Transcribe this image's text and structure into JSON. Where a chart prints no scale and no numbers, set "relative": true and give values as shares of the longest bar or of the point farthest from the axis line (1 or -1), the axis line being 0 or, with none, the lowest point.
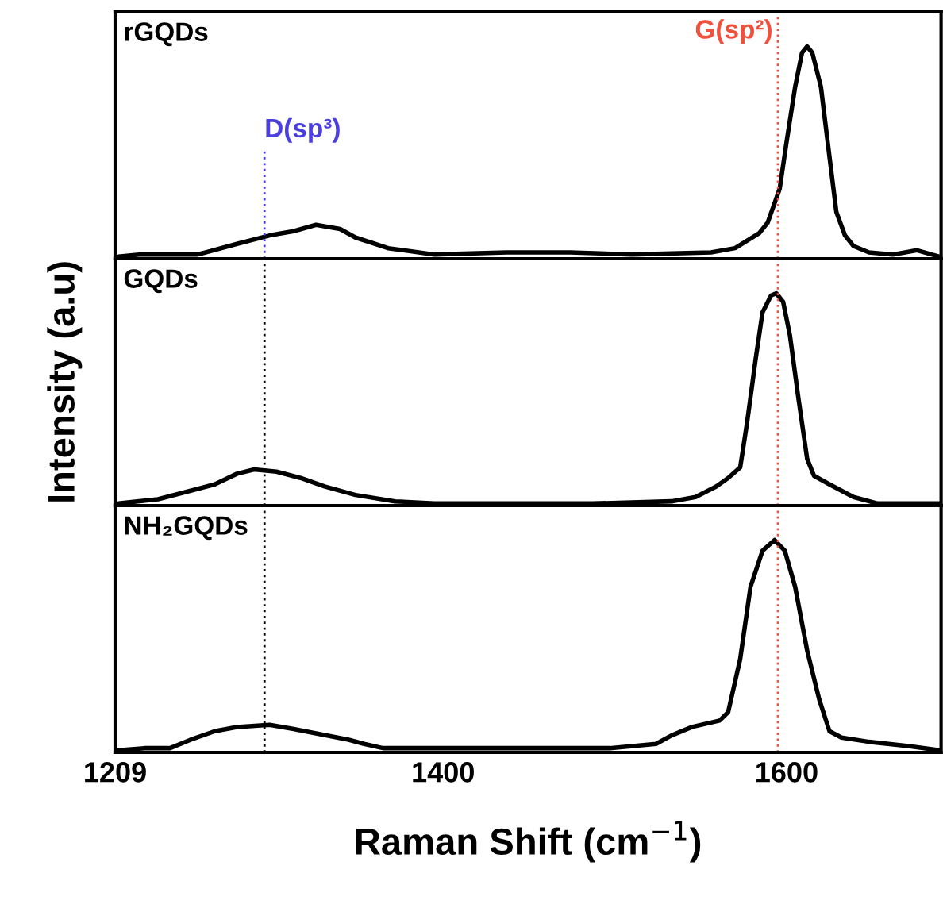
{
  "chart_data": [
    {
      "type": "line",
      "relative": true,
      "tick_labels": false,
      "xlim": [
        1209,
        1690
      ],
      "x": [
        1211,
        1223,
        1257,
        1280,
        1299,
        1313,
        1326,
        1340,
        1349,
        1368,
        1395,
        1437,
        1474,
        1510,
        1556,
        1570,
        1584,
        1589,
        1596,
        1600,
        1605,
        1609,
        1612,
        1615,
        1620,
        1625,
        1629,
        1634,
        1639,
        1648,
        1662,
        1676,
        1689
      ],
      "series": [
        {
          "name": "rGQDs",
          "color": "#000000",
          "values": [
            0.01,
            0.02,
            0.02,
            0.07,
            0.11,
            0.13,
            0.16,
            0.14,
            0.1,
            0.05,
            0.02,
            0.03,
            0.03,
            0.02,
            0.03,
            0.05,
            0.12,
            0.17,
            0.33,
            0.55,
            0.81,
            0.97,
            1.0,
            0.97,
            0.81,
            0.48,
            0.22,
            0.11,
            0.06,
            0.03,
            0.02,
            0.04,
            0.01
          ]
        }
      ],
      "ref_lines": [
        {
          "axis": "x",
          "value": 1296,
          "label": "D(sp³)",
          "color": "#4b3fe0",
          "line_style": "dotted"
        },
        {
          "axis": "x",
          "value": 1595,
          "label": "G(sp²)",
          "color": "#f0503c",
          "line_style": "dotted"
        }
      ]
    },
    {
      "type": "line",
      "relative": true,
      "tick_labels": false,
      "xlim": [
        1209,
        1690
      ],
      "ylabel": "Intensity (a.u)",
      "x": [
        1211,
        1234,
        1253,
        1267,
        1280,
        1290,
        1303,
        1317,
        1331,
        1349,
        1372,
        1395,
        1441,
        1487,
        1533,
        1547,
        1559,
        1566,
        1573,
        1577,
        1582,
        1586,
        1591,
        1594,
        1598,
        1602,
        1607,
        1612,
        1616,
        1625,
        1639,
        1653,
        1689
      ],
      "series": [
        {
          "name": "GQDs",
          "color": "#000000",
          "values": [
            0.01,
            0.03,
            0.07,
            0.1,
            0.15,
            0.17,
            0.16,
            0.13,
            0.09,
            0.05,
            0.02,
            0.01,
            0.01,
            0.01,
            0.02,
            0.04,
            0.09,
            0.13,
            0.18,
            0.39,
            0.69,
            0.91,
            0.99,
            1.0,
            0.96,
            0.8,
            0.5,
            0.22,
            0.14,
            0.1,
            0.04,
            0.01,
            0.01
          ]
        }
      ],
      "ref_lines": [
        {
          "axis": "x",
          "value": 1296,
          "color": "#000000",
          "line_style": "dotted"
        },
        {
          "axis": "x",
          "value": 1595,
          "color": "#f0503c",
          "line_style": "dotted"
        }
      ]
    },
    {
      "type": "line",
      "relative": true,
      "tick_labels": "x",
      "xlim": [
        1209,
        1690
      ],
      "xticks": [
        1209,
        1400,
        1600
      ],
      "xlabel": "Raman Shift (cm$^{−1}$)",
      "x": [
        1211,
        1226,
        1241,
        1253,
        1267,
        1280,
        1299,
        1313,
        1326,
        1345,
        1354,
        1365,
        1395,
        1441,
        1497,
        1524,
        1533,
        1545,
        1561,
        1566,
        1573,
        1579,
        1586,
        1593,
        1599,
        1605,
        1612,
        1619,
        1625,
        1632,
        1648,
        1671,
        1689
      ],
      "series": [
        {
          "name": "NH₂GQDs",
          "color": "#000000",
          "values": [
            0.01,
            0.02,
            0.02,
            0.06,
            0.1,
            0.12,
            0.13,
            0.11,
            0.09,
            0.06,
            0.04,
            0.02,
            0.02,
            0.02,
            0.02,
            0.04,
            0.08,
            0.12,
            0.15,
            0.19,
            0.44,
            0.78,
            0.95,
            1.0,
            0.95,
            0.78,
            0.48,
            0.25,
            0.1,
            0.07,
            0.05,
            0.03,
            0.01
          ]
        }
      ],
      "ref_lines": [
        {
          "axis": "x",
          "value": 1296,
          "color": "#000000",
          "line_style": "dotted"
        },
        {
          "axis": "x",
          "value": 1595,
          "color": "#f0503c",
          "line_style": "dotted"
        }
      ]
    }
  ]
}
